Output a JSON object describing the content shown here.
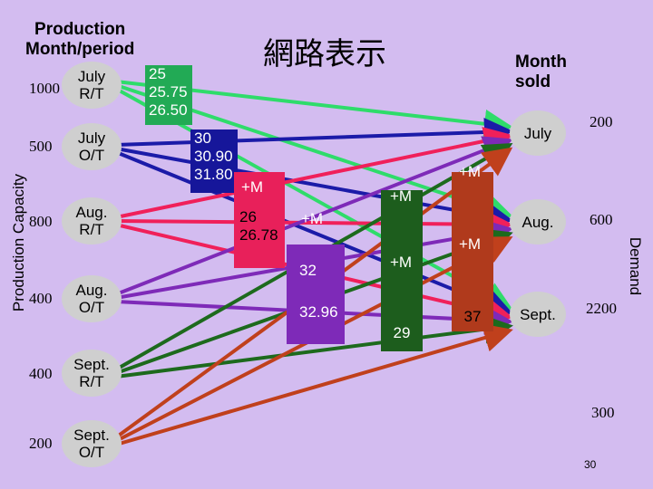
{
  "title": "網路表示",
  "production_header": "Production\nMonth/period",
  "month_sold_header": "Month\nsold",
  "production_capacity_label": "Production Capacity",
  "demand_label": "Demand",
  "page_number": "30",
  "sources": [
    {
      "label": "July\nR/T",
      "capacity": "1000"
    },
    {
      "label": "July\nO/T",
      "capacity": "500"
    },
    {
      "label": "Aug.\nR/T",
      "capacity": "800"
    },
    {
      "label": "Aug.\nO/T",
      "capacity": "400"
    },
    {
      "label": "Sept.\nR/T",
      "capacity": "400"
    },
    {
      "label": "Sept.\nO/T",
      "capacity": "200"
    }
  ],
  "sinks": [
    {
      "label": "July",
      "demand": "200"
    },
    {
      "label": "Aug.",
      "demand": "600"
    },
    {
      "label": "Sept.",
      "demand": "2200"
    }
  ],
  "dummy_demand": "300",
  "cost_boxes": [
    {
      "text": "25\n25.75\n26.50",
      "color": "#22aa55"
    },
    {
      "text": "30\n30.90\n31.80",
      "color": "#16169a"
    },
    {
      "text": "26\n26.78",
      "color": "#e8205a"
    },
    {
      "text": "32\n32.96",
      "color": "#7e2ab8"
    },
    {
      "text": "29",
      "color": "#1d5d1d"
    },
    {
      "text": "37",
      "color": "#b03a1c"
    }
  ],
  "marks": [
    "+M",
    "+M",
    "+M",
    "+M",
    "+M",
    "+M"
  ],
  "colors": {
    "background": "#d3bcf0",
    "node_fill": "#cfcfcf",
    "july_rt": "#2fdc6a",
    "july_ot": "#1b1ba8",
    "aug_rt": "#f0205a",
    "aug_ot": "#7e2ab8",
    "sept_rt": "#1d6a1d",
    "sept_ot": "#c0401c"
  }
}
